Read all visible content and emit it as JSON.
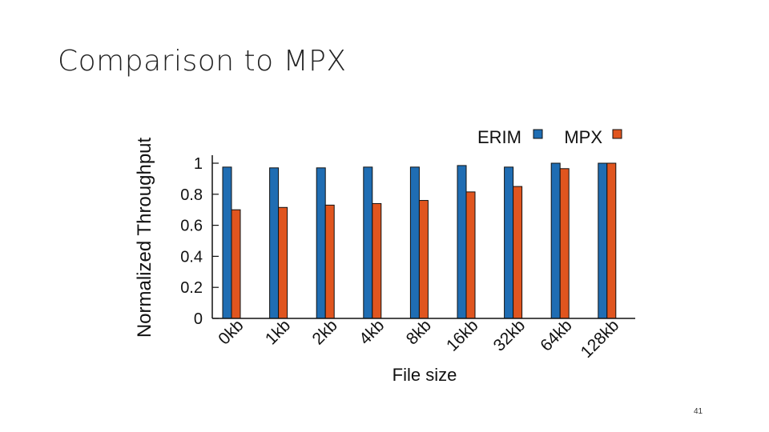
{
  "slide": {
    "title": "Comparison to MPX",
    "page_number": "41"
  },
  "chart_data": {
    "type": "bar",
    "title": "",
    "xlabel": "File size",
    "ylabel": "Normalized Throughput",
    "categories": [
      "0kb",
      "1kb",
      "2kb",
      "4kb",
      "8kb",
      "16kb",
      "32kb",
      "64kb",
      "128kb"
    ],
    "yticks": [
      "0",
      "0.2",
      "0.4",
      "0.6",
      "0.8",
      "1"
    ],
    "ylim": [
      0,
      1.05
    ],
    "legend_placement": "top-right",
    "grid": false,
    "series": [
      {
        "name": "ERIM",
        "color": "#1f6db3",
        "values": [
          0.975,
          0.97,
          0.97,
          0.975,
          0.975,
          0.985,
          0.975,
          1.0,
          1.0
        ]
      },
      {
        "name": "MPX",
        "color": "#e0551f",
        "values": [
          0.7,
          0.715,
          0.73,
          0.74,
          0.76,
          0.815,
          0.85,
          0.965,
          1.0
        ]
      }
    ]
  }
}
